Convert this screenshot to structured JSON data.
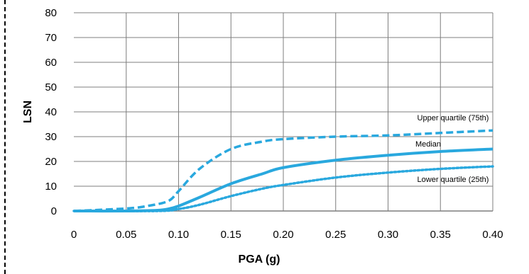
{
  "chart_data": {
    "type": "line",
    "xlabel": "PGA (g)",
    "ylabel": "LSN",
    "xlim": [
      0,
      0.4
    ],
    "ylim": [
      0,
      80
    ],
    "x_ticks": [
      "0",
      "0.05",
      "0.10",
      "0.15",
      "0.20",
      "0.25",
      "0.30",
      "0.35",
      "0.40"
    ],
    "y_ticks": [
      "0",
      "10",
      "20",
      "30",
      "40",
      "50",
      "60",
      "70",
      "80"
    ],
    "grid": true,
    "line_color": "#29a8de",
    "series": [
      {
        "name": "Upper quartile (75th)",
        "style": "dashed",
        "x": [
          0,
          0.05,
          0.07,
          0.09,
          0.1,
          0.12,
          0.15,
          0.18,
          0.2,
          0.25,
          0.3,
          0.35,
          0.4
        ],
        "y": [
          0,
          1,
          2,
          4,
          8,
          17,
          25,
          28,
          29,
          30,
          30.5,
          31.5,
          32.5
        ]
      },
      {
        "name": "Median",
        "style": "solid",
        "x": [
          0,
          0.05,
          0.08,
          0.09,
          0.1,
          0.12,
          0.15,
          0.18,
          0.2,
          0.25,
          0.3,
          0.35,
          0.4
        ],
        "y": [
          0,
          0,
          0.3,
          0.8,
          2,
          5.5,
          11,
          15,
          17.5,
          20.5,
          22.5,
          24,
          25
        ]
      },
      {
        "name": "Lower quartile (25th)",
        "style": "dotted",
        "x": [
          0,
          0.08,
          0.1,
          0.12,
          0.15,
          0.18,
          0.2,
          0.25,
          0.3,
          0.35,
          0.4
        ],
        "y": [
          0,
          0,
          0.8,
          2.5,
          6,
          9,
          10.5,
          13.5,
          15.5,
          17,
          18
        ]
      }
    ],
    "annotations": [
      "Upper quartile (75th)",
      "Median",
      "Lower quartile (25th)"
    ]
  }
}
